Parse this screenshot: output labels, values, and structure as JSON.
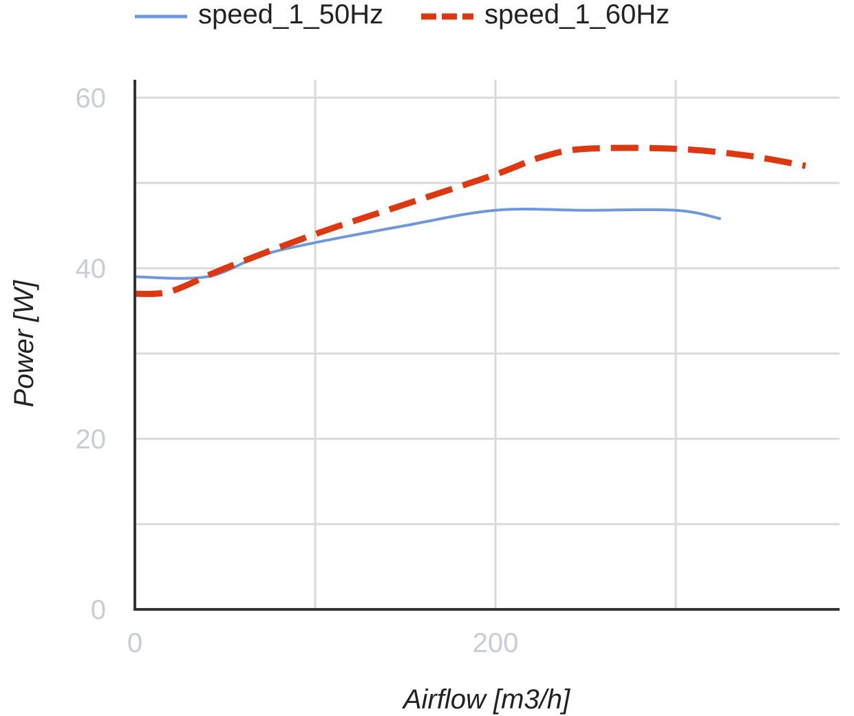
{
  "chart_data": {
    "type": "line",
    "title": "",
    "xlabel": "Airflow [m3/h]",
    "ylabel": "Power [W]",
    "xlim": [
      0,
      390
    ],
    "ylim": [
      0,
      60
    ],
    "x_ticks": [
      0,
      200
    ],
    "y_ticks": [
      0,
      20,
      40,
      60
    ],
    "x_gridlines": [
      100,
      200,
      300
    ],
    "y_gridlines": [
      10,
      20,
      30,
      40,
      50,
      60
    ],
    "grid": true,
    "legend_position": "top",
    "series": [
      {
        "name": "speed_1_50Hz",
        "color": "#6f97d9",
        "dash": "solid",
        "points": [
          [
            0,
            39
          ],
          [
            40,
            39
          ],
          [
            70,
            41.5
          ],
          [
            100,
            43
          ],
          [
            150,
            45
          ],
          [
            200,
            46.8
          ],
          [
            250,
            46.8
          ],
          [
            300,
            46.8
          ],
          [
            325,
            45.8
          ]
        ]
      },
      {
        "name": "speed_1_60Hz",
        "color": "#dc3912",
        "dash": "dashed",
        "points": [
          [
            0,
            37
          ],
          [
            20,
            37.3
          ],
          [
            50,
            40
          ],
          [
            100,
            44
          ],
          [
            150,
            47.5
          ],
          [
            200,
            51
          ],
          [
            225,
            53
          ],
          [
            250,
            54
          ],
          [
            300,
            54
          ],
          [
            340,
            53.2
          ],
          [
            372,
            52
          ]
        ]
      }
    ]
  }
}
